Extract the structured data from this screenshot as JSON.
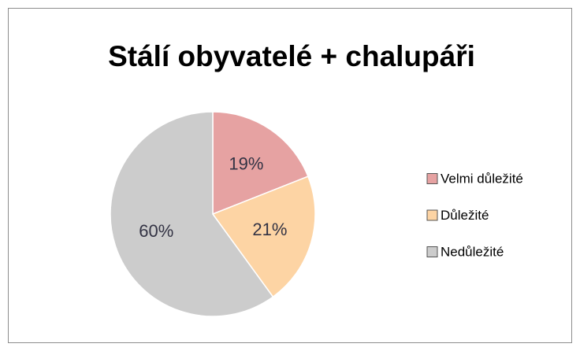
{
  "chart_data": {
    "type": "pie",
    "title": "Stálí obyvatelé + chalupáři",
    "categories": [
      "Velmi důležité",
      "Důležité",
      "Nedůležité"
    ],
    "values": [
      19,
      21,
      60
    ],
    "value_labels": [
      "19%",
      "21%",
      "60%"
    ],
    "colors": [
      "#e6a2a2",
      "#fdd4a4",
      "#cccccc"
    ],
    "legend": "right"
  }
}
